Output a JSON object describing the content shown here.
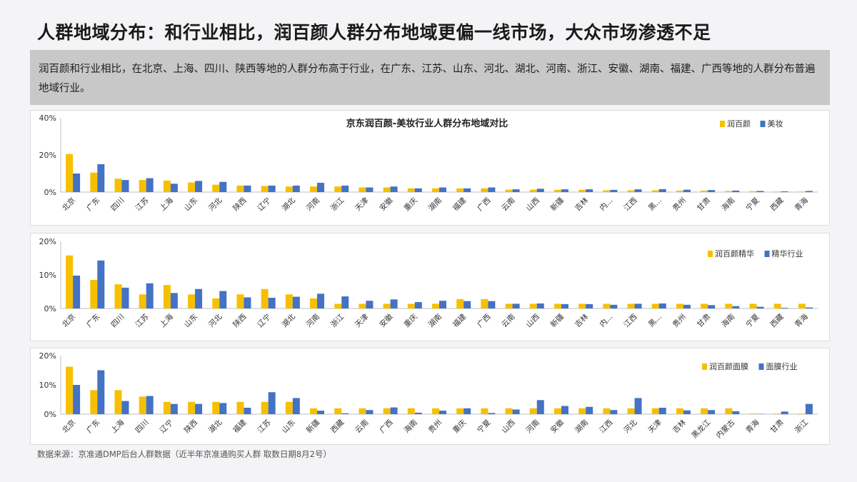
{
  "header": {
    "title": "人群地域分布：和行业相比，润百颜人群分布地域更偏一线市场，大众市场渗透不足",
    "summary": "润百颜和行业相比，在北京、上海、四川、陕西等地的人群分布高于行业，在广东、江苏、山东、河北、湖北、河南、浙江、安徽、湖南、福建、广西等地的人群分布普遍地域行业。"
  },
  "footer": {
    "source": "数据来源：京准通DMP后台人群数据（近半年京准通购买人群 取数日期8月2号）"
  },
  "colors": {
    "brand": "#f6c000",
    "industry": "#4472c4"
  },
  "chart_data": [
    {
      "type": "bar",
      "title": "京东润百颜-美妆行业人群分布地域对比",
      "legend_position": "top-right",
      "ylim": [
        0,
        40
      ],
      "yticks": [
        "0%",
        "20%",
        "40%"
      ],
      "categories": [
        "北京",
        "广东",
        "四川",
        "江苏",
        "上海",
        "山东",
        "河北",
        "陕西",
        "辽宁",
        "湖北",
        "河南",
        "浙江",
        "天津",
        "安徽",
        "重庆",
        "湖南",
        "福建",
        "广西",
        "云南",
        "山西",
        "新疆",
        "吉林",
        "内...",
        "江西",
        "黑...",
        "贵州",
        "甘肃",
        "海南",
        "宁夏",
        "西藏",
        "青海"
      ],
      "series": [
        {
          "name": "润百颜",
          "values": [
            20.5,
            10.5,
            7.2,
            6.5,
            6.2,
            5.2,
            4.0,
            3.5,
            3.3,
            3.0,
            3.0,
            3.0,
            2.5,
            2.5,
            2.0,
            2.0,
            2.0,
            2.0,
            1.3,
            1.3,
            1.2,
            1.2,
            1.0,
            1.0,
            1.0,
            0.8,
            0.8,
            0.6,
            0.5,
            0.3,
            0.3
          ]
        },
        {
          "name": "美妆",
          "values": [
            10.0,
            15.0,
            6.5,
            7.5,
            4.5,
            6.0,
            5.5,
            3.5,
            3.5,
            3.5,
            5.0,
            3.5,
            2.5,
            3.0,
            2.0,
            2.5,
            2.0,
            2.5,
            1.5,
            1.8,
            1.5,
            1.5,
            1.2,
            1.5,
            1.6,
            1.3,
            1.1,
            0.8,
            0.6,
            0.4,
            0.6
          ]
        }
      ]
    },
    {
      "type": "bar",
      "title": "",
      "legend_position": "right",
      "ylim": [
        0,
        20
      ],
      "yticks": [
        "0%",
        "10%",
        "20%"
      ],
      "categories": [
        "北京",
        "广东",
        "四川",
        "江苏",
        "上海",
        "山东",
        "河北",
        "陕西",
        "辽宁",
        "湖北",
        "河南",
        "浙江",
        "天津",
        "安徽",
        "重庆",
        "湖南",
        "福建",
        "广西",
        "云南",
        "山西",
        "新疆",
        "吉林",
        "内...",
        "江西",
        "黑...",
        "贵州",
        "甘肃",
        "海南",
        "宁夏",
        "西藏",
        "青海"
      ],
      "series": [
        {
          "name": "润百颜精华",
          "values": [
            15.8,
            8.5,
            7.2,
            4.2,
            7.0,
            4.2,
            3.0,
            4.2,
            5.8,
            4.2,
            3.0,
            1.4,
            1.4,
            1.4,
            1.4,
            1.4,
            2.8,
            2.8,
            1.4,
            1.4,
            1.4,
            1.4,
            1.4,
            1.4,
            1.4,
            1.4,
            1.4,
            1.4,
            1.4,
            1.4,
            1.4
          ]
        },
        {
          "name": "精华行业",
          "values": [
            9.8,
            14.3,
            6.2,
            7.5,
            4.6,
            5.8,
            5.2,
            3.3,
            3.2,
            3.5,
            4.4,
            3.6,
            2.3,
            2.7,
            1.9,
            2.3,
            2.2,
            2.2,
            1.4,
            1.5,
            1.3,
            1.3,
            1.1,
            1.4,
            1.5,
            1.1,
            1.0,
            0.7,
            0.5,
            0.2,
            0.3
          ]
        }
      ]
    },
    {
      "type": "bar",
      "title": "",
      "legend_position": "right",
      "ylim": [
        0,
        20
      ],
      "yticks": [
        "0%",
        "10%",
        "20%"
      ],
      "categories": [
        "北京",
        "广东",
        "上海",
        "四川",
        "辽宁",
        "陕西",
        "湖北",
        "福建",
        "江苏",
        "山东",
        "新疆",
        "西藏",
        "云南",
        "广西",
        "海南",
        "贵州",
        "重庆",
        "宁夏",
        "山西",
        "河南",
        "安徽",
        "湖南",
        "江西",
        "河北",
        "天津",
        "吉林",
        "黑龙江",
        "内蒙古",
        "青海",
        "甘肃",
        "浙江"
      ],
      "series": [
        {
          "name": "润百颜面膜",
          "values": [
            16.2,
            8.2,
            8.2,
            6.0,
            4.2,
            4.2,
            4.2,
            4.2,
            4.2,
            4.2,
            2.0,
            2.0,
            2.0,
            2.0,
            2.0,
            2.0,
            2.0,
            2.0,
            2.0,
            2.0,
            2.0,
            2.0,
            2.0,
            2.0,
            2.0,
            2.0,
            2.0,
            2.0,
            0.2,
            0.2,
            0.2
          ]
        },
        {
          "name": "面膜行业",
          "values": [
            10.0,
            15.0,
            4.5,
            6.2,
            3.5,
            3.5,
            3.8,
            2.2,
            7.5,
            5.5,
            1.2,
            0.3,
            1.4,
            2.3,
            0.5,
            1.2,
            2.0,
            0.4,
            1.6,
            4.8,
            2.8,
            2.5,
            1.4,
            5.5,
            2.2,
            1.3,
            1.4,
            1.0,
            0.1,
            0.9,
            3.5
          ]
        }
      ]
    }
  ]
}
